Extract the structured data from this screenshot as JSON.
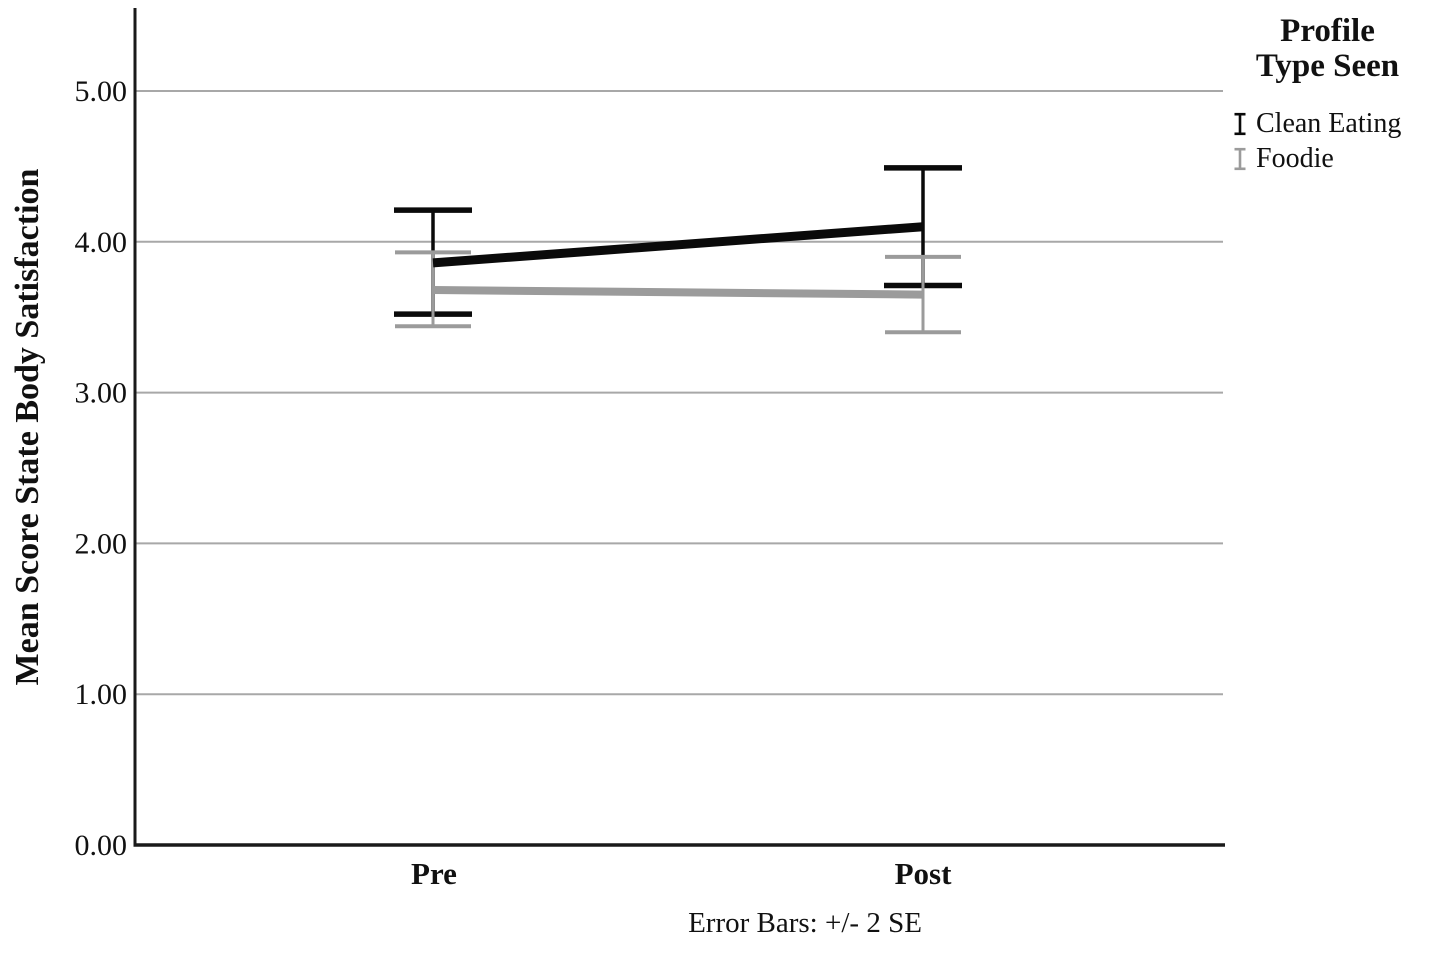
{
  "figure": {
    "background": "#ffffff"
  },
  "chart_data": {
    "type": "line",
    "title": "",
    "xlabel": "",
    "ylabel": "Mean Score State Body Satisfaction",
    "categories": [
      "Pre",
      "Post"
    ],
    "ytick_labels": [
      "0.00",
      "1.00",
      "2.00",
      "3.00",
      "4.00",
      "5.00"
    ],
    "ytick_values": [
      0,
      1,
      2,
      3,
      4,
      5
    ],
    "ylim": [
      0,
      5.55
    ],
    "grid": "horizontal-only",
    "legend": {
      "title_line1": "Profile",
      "title_line2": "Type Seen",
      "position": "top-right"
    },
    "caption": "Error Bars: +/- 2 SE",
    "error_bar_definition": "+/- 2 SE",
    "series": [
      {
        "name": "Clean Eating",
        "color": "#0a0a0a",
        "means": [
          3.86,
          4.1
        ],
        "err_low": [
          3.52,
          3.71
        ],
        "err_high": [
          4.21,
          4.49
        ]
      },
      {
        "name": "Foodie",
        "color": "#9b9b9b",
        "means": [
          3.68,
          3.65
        ],
        "err_low": [
          3.44,
          3.4
        ],
        "err_high": [
          3.93,
          3.9
        ]
      }
    ],
    "colors": {
      "axis": "#1a1a1a",
      "gridline": "#a8a8a8",
      "text": "#111111"
    }
  }
}
